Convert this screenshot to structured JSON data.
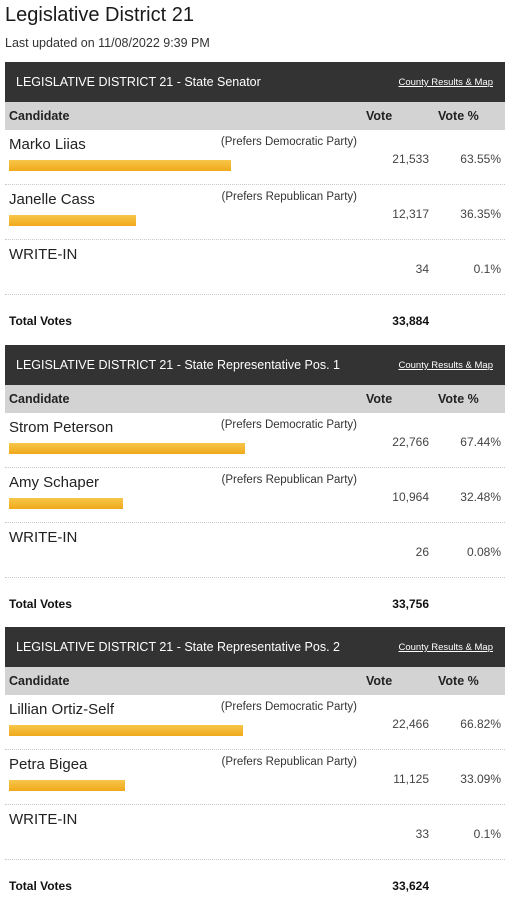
{
  "page": {
    "title": "Legislative District 21",
    "updated": "Last updated on 11/08/2022 9:39 PM"
  },
  "colors": {
    "header_bg": "#333333",
    "colhead_bg": "#d3d3d3",
    "bar": "#f2b52e"
  },
  "columns": {
    "candidate": "Candidate",
    "vote": "Vote",
    "vote_pct": "Vote %"
  },
  "races": [
    {
      "title": "LEGISLATIVE DISTRICT 21 - State Senator",
      "link": "County Results & Map",
      "candidates": [
        {
          "name": "Marko Liias",
          "party": "(Prefers Democratic Party)",
          "votes": "21,533",
          "pct": "63.55%",
          "share": 63.55
        },
        {
          "name": "Janelle Cass",
          "party": "(Prefers Republican Party)",
          "votes": "12,317",
          "pct": "36.35%",
          "share": 36.35
        },
        {
          "name": "WRITE-IN",
          "party": "",
          "votes": "34",
          "pct": "0.1%",
          "share": 0
        }
      ],
      "total_label": "Total Votes",
      "total": "33,884"
    },
    {
      "title": "LEGISLATIVE DISTRICT 21 - State Representative Pos. 1",
      "link": "County Results & Map",
      "candidates": [
        {
          "name": "Strom Peterson",
          "party": "(Prefers Democratic Party)",
          "votes": "22,766",
          "pct": "67.44%",
          "share": 67.44
        },
        {
          "name": "Amy Schaper",
          "party": "(Prefers Republican Party)",
          "votes": "10,964",
          "pct": "32.48%",
          "share": 32.48
        },
        {
          "name": "WRITE-IN",
          "party": "",
          "votes": "26",
          "pct": "0.08%",
          "share": 0
        }
      ],
      "total_label": "Total Votes",
      "total": "33,756"
    },
    {
      "title": "LEGISLATIVE DISTRICT 21 - State Representative Pos. 2",
      "link": "County Results & Map",
      "candidates": [
        {
          "name": "Lillian Ortiz-Self",
          "party": "(Prefers Democratic Party)",
          "votes": "22,466",
          "pct": "66.82%",
          "share": 66.82
        },
        {
          "name": "Petra Bigea",
          "party": "(Prefers Republican Party)",
          "votes": "11,125",
          "pct": "33.09%",
          "share": 33.09
        },
        {
          "name": "WRITE-IN",
          "party": "",
          "votes": "33",
          "pct": "0.1%",
          "share": 0
        }
      ],
      "total_label": "Total Votes",
      "total": "33,624"
    }
  ]
}
